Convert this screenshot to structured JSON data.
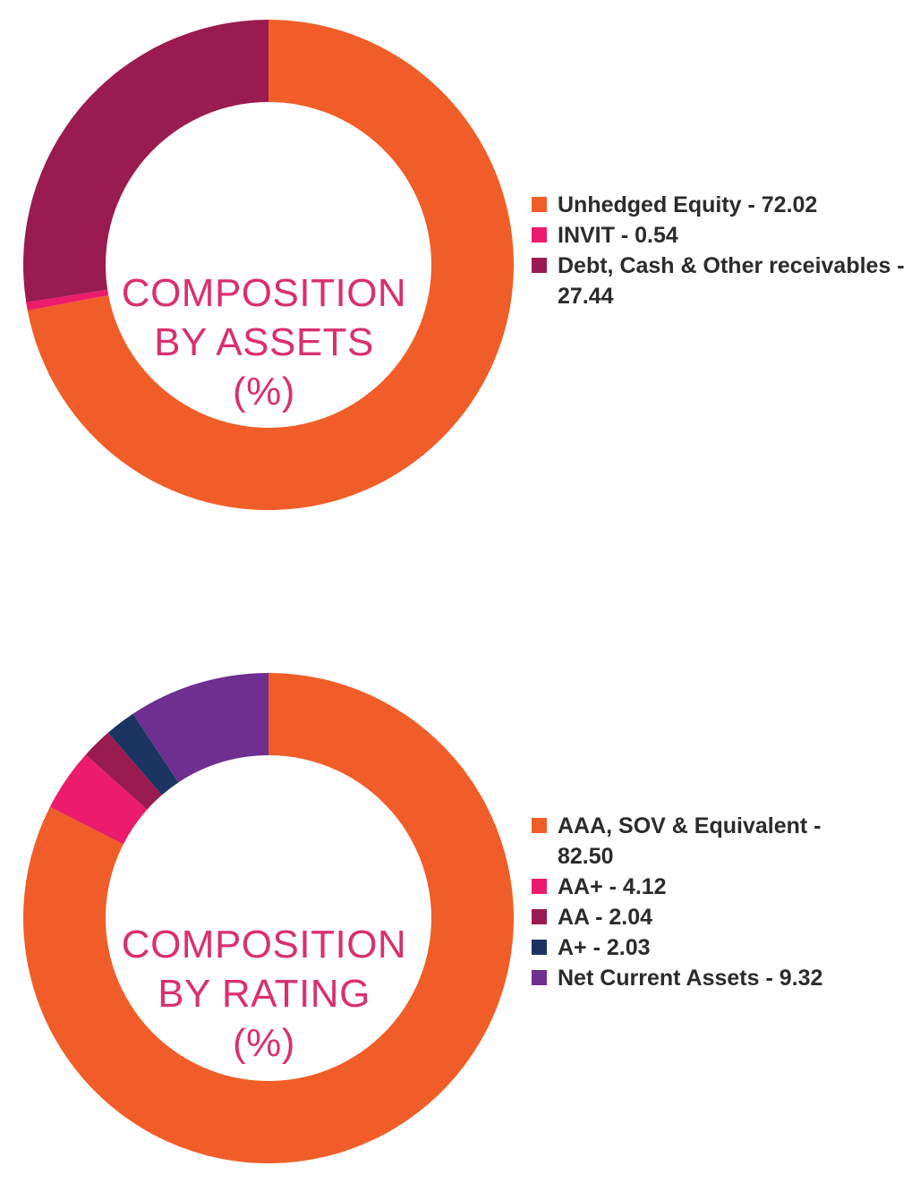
{
  "colors": {
    "orange": "#f05d28",
    "pink": "#ec1b6b",
    "maroon": "#9a1b4f",
    "navy": "#1c3461",
    "purple": "#6e2f90",
    "title": "#d9306f"
  },
  "chart_data": [
    {
      "type": "pie",
      "title_lines": [
        "COMPOSITION",
        "BY ASSETS",
        "(%)"
      ],
      "categories": [
        "Unhedged Equity",
        "INVIT",
        "Debt, Cash & Other receivables"
      ],
      "values": [
        72.02,
        0.54,
        27.44
      ],
      "colors": [
        "#f05d28",
        "#ec1b6b",
        "#9a1b4f"
      ],
      "legend": [
        {
          "label": "Unhedged Equity - 72.02",
          "color": "#f05d28"
        },
        {
          "label": "INVIT - 0.54",
          "color": "#ec1b6b"
        },
        {
          "label": "Debt, Cash & Other receivables - 27.44",
          "color": "#9a1b4f"
        }
      ],
      "legend_position": "right"
    },
    {
      "type": "pie",
      "title_lines": [
        "COMPOSITION",
        "BY RATING",
        "(%)"
      ],
      "categories": [
        "AAA, SOV & Equivalent",
        "AA+",
        "AA",
        "A+",
        "Net Current Assets"
      ],
      "values": [
        82.5,
        4.12,
        2.04,
        2.03,
        9.32
      ],
      "colors": [
        "#f05d28",
        "#ec1b6b",
        "#9a1b4f",
        "#1c3461",
        "#6e2f90"
      ],
      "legend": [
        {
          "label": "AAA, SOV & Equivalent - 82.50",
          "color": "#f05d28"
        },
        {
          "label": "AA+ - 4.12",
          "color": "#ec1b6b"
        },
        {
          "label": "AA - 2.04",
          "color": "#9a1b4f"
        },
        {
          "label": "A+ - 2.03",
          "color": "#1c3461"
        },
        {
          "label": "Net Current Assets - 9.32",
          "color": "#6e2f90"
        }
      ],
      "legend_position": "right"
    }
  ]
}
